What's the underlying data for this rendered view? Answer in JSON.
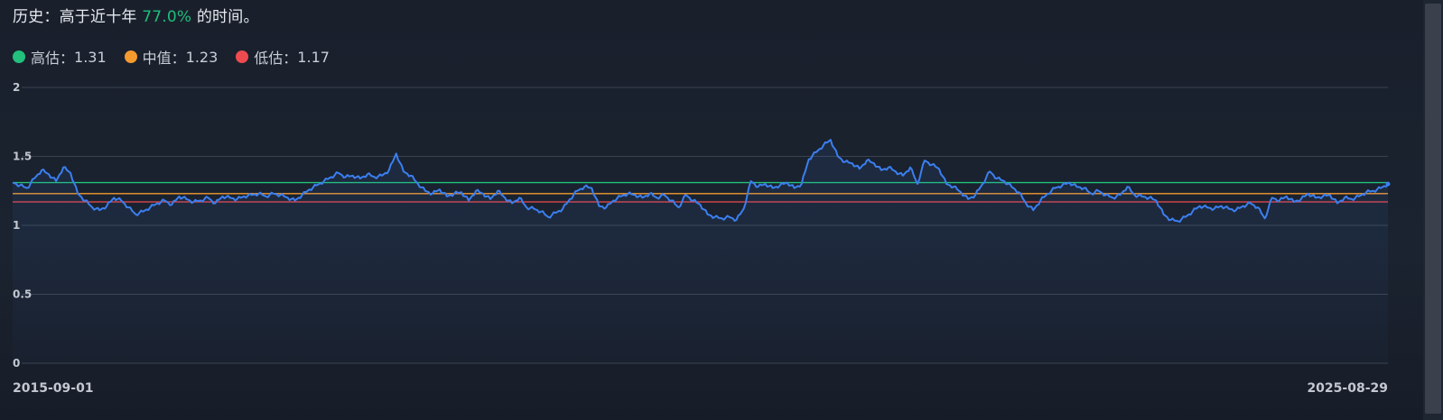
{
  "headline": {
    "prefix": "历史：高于近十年",
    "percent": "77.0%",
    "suffix": "的时间。"
  },
  "legend": [
    {
      "label": "高估：",
      "value": "1.31",
      "color": "#22c07c"
    },
    {
      "label": "中值：",
      "value": "1.23",
      "color": "#f59a2f"
    },
    {
      "label": "低估：",
      "value": "1.17",
      "color": "#ef4a4f"
    }
  ],
  "chart_data": {
    "type": "line",
    "title": "",
    "xlabel": "",
    "ylabel": "",
    "ylim": [
      0,
      2
    ],
    "yticks": [
      "0",
      "0.5",
      "1",
      "1.5",
      "2"
    ],
    "x_start": "2015-09-01",
    "x_end": "2025-08-29",
    "grid": true,
    "line_color": "#3b7ff0",
    "reference_lines": [
      {
        "name": "高估",
        "value": 1.31,
        "color": "#22c07c"
      },
      {
        "name": "中值",
        "value": 1.23,
        "color": "#f59a2f"
      },
      {
        "name": "低估",
        "value": 1.17,
        "color": "#ef4a4f"
      }
    ],
    "series": [
      {
        "values": [
          1.31,
          1.29,
          1.27,
          1.34,
          1.4,
          1.37,
          1.32,
          1.42,
          1.38,
          1.23,
          1.18,
          1.13,
          1.11,
          1.14,
          1.2,
          1.18,
          1.13,
          1.08,
          1.1,
          1.13,
          1.16,
          1.18,
          1.15,
          1.21,
          1.19,
          1.17,
          1.18,
          1.2,
          1.16,
          1.21,
          1.2,
          1.19,
          1.21,
          1.22,
          1.23,
          1.21,
          1.23,
          1.22,
          1.2,
          1.18,
          1.22,
          1.26,
          1.29,
          1.32,
          1.35,
          1.38,
          1.35,
          1.36,
          1.34,
          1.37,
          1.35,
          1.36,
          1.4,
          1.52,
          1.39,
          1.36,
          1.3,
          1.25,
          1.23,
          1.26,
          1.21,
          1.23,
          1.24,
          1.18,
          1.25,
          1.23,
          1.19,
          1.25,
          1.2,
          1.16,
          1.2,
          1.13,
          1.12,
          1.1,
          1.06,
          1.09,
          1.12,
          1.19,
          1.25,
          1.28,
          1.27,
          1.14,
          1.13,
          1.18,
          1.21,
          1.23,
          1.22,
          1.2,
          1.23,
          1.2,
          1.22,
          1.18,
          1.13,
          1.22,
          1.18,
          1.15,
          1.08,
          1.06,
          1.05,
          1.06,
          1.04,
          1.12,
          1.32,
          1.28,
          1.3,
          1.27,
          1.29,
          1.31,
          1.27,
          1.3,
          1.48,
          1.53,
          1.58,
          1.62,
          1.5,
          1.46,
          1.45,
          1.41,
          1.47,
          1.45,
          1.4,
          1.42,
          1.39,
          1.36,
          1.42,
          1.3,
          1.47,
          1.44,
          1.41,
          1.3,
          1.28,
          1.24,
          1.19,
          1.22,
          1.3,
          1.39,
          1.34,
          1.32,
          1.28,
          1.24,
          1.16,
          1.11,
          1.18,
          1.23,
          1.27,
          1.29,
          1.31,
          1.28,
          1.27,
          1.23,
          1.25,
          1.22,
          1.2,
          1.22,
          1.28,
          1.22,
          1.21,
          1.2,
          1.18,
          1.08,
          1.04,
          1.03,
          1.06,
          1.1,
          1.14,
          1.13,
          1.12,
          1.14,
          1.12,
          1.11,
          1.14,
          1.16,
          1.13,
          1.05,
          1.2,
          1.18,
          1.21,
          1.17,
          1.19,
          1.23,
          1.2,
          1.21,
          1.22,
          1.16,
          1.2,
          1.19,
          1.21,
          1.24,
          1.25,
          1.27,
          1.3
        ]
      }
    ]
  }
}
